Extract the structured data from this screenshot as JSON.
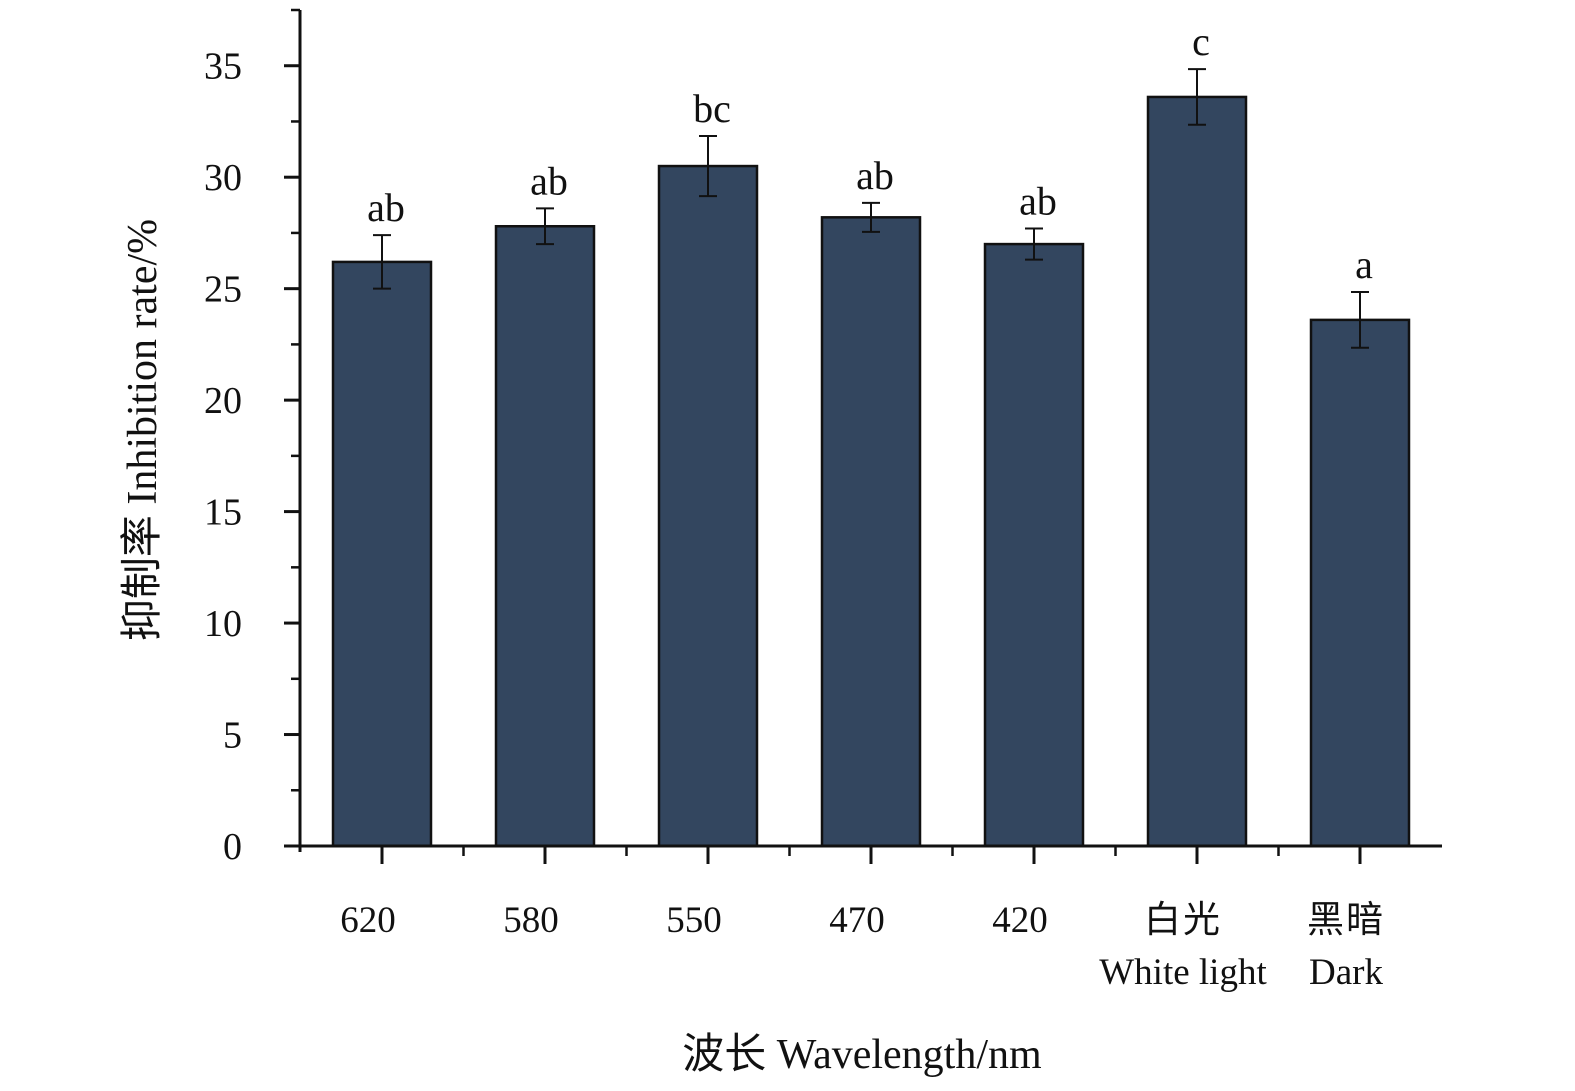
{
  "chart_data": {
    "type": "bar",
    "categories": [
      [
        "620"
      ],
      [
        "580"
      ],
      [
        "550"
      ],
      [
        "470"
      ],
      [
        "420"
      ],
      [
        "白光",
        "White light"
      ],
      [
        "黑暗",
        "Dark"
      ]
    ],
    "values": [
      26.2,
      27.8,
      30.5,
      28.2,
      27.0,
      33.6,
      23.6
    ],
    "errors": [
      1.2,
      0.8,
      1.35,
      0.65,
      0.7,
      1.25,
      1.25
    ],
    "significance": [
      "ab",
      "ab",
      "bc",
      "ab",
      "ab",
      "c",
      "a"
    ],
    "ylabel": "抑制率 Inhibition rate/%",
    "xlabel": "波长 Wavelength/nm",
    "ylim": [
      0,
      37.5
    ],
    "yticks": [
      0,
      5,
      10,
      15,
      20,
      25,
      30,
      35
    ],
    "ytick_labels": [
      "0",
      "5",
      "10",
      "15",
      "20",
      "25",
      "30",
      "35"
    ],
    "grid": false,
    "colors": {
      "bar": "#33465f",
      "outline": "#111111"
    }
  }
}
